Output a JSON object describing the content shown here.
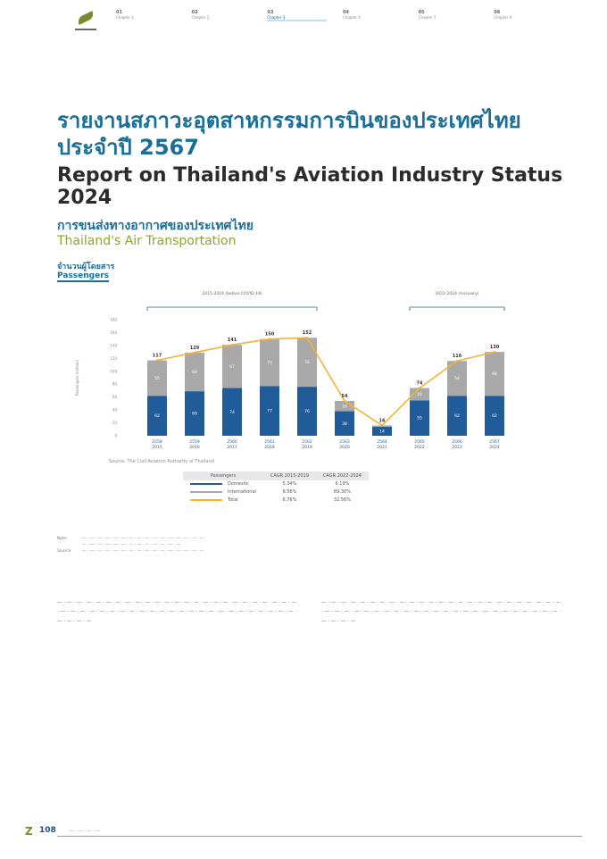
{
  "nav": {
    "items": [
      {
        "num": "01",
        "label": "Chapter 1"
      },
      {
        "num": "02",
        "label": "Chapter 2"
      },
      {
        "num": "03",
        "label": "Chapter 3"
      },
      {
        "num": "04",
        "label": "Chapter 4"
      },
      {
        "num": "05",
        "label": "Chapter 5"
      },
      {
        "num": "06",
        "label": "Chapter 6"
      }
    ],
    "active_index": 2
  },
  "title": {
    "th_line1": "รายงานสภาวะอุตสาหกรรมการบินของประเทศไทย",
    "th_line2": "ประจำปี 2567",
    "en": "Report on Thailand's Aviation Industry Status 2024"
  },
  "section": {
    "th": "การขนส่งทางอากาศของประเทศไทย",
    "en": "Thailand's Air Transportation",
    "sub_th": "จำนวนผู้โดยสาร",
    "sub_en": "Passengers"
  },
  "chart_data": {
    "type": "bar",
    "stacked": true,
    "title": "Passengers",
    "ylabel": "Passengers (million)",
    "ylim": [
      0,
      180
    ],
    "yticks": [
      0,
      20,
      40,
      60,
      80,
      100,
      120,
      140,
      160,
      180
    ],
    "categories": [
      "2558\n2015",
      "2559\n2016",
      "2560\n2017",
      "2561\n2018",
      "2562\n2019",
      "2563\n2020",
      "2564\n2021",
      "2565\n2022",
      "2566\n2023",
      "2567\n2024"
    ],
    "series": [
      {
        "name": "Domestic",
        "color": "#1f5c99",
        "values": [
          62,
          69,
          74,
          77,
          76,
          38,
          14,
          55,
          62,
          62
        ]
      },
      {
        "name": "International",
        "color": "#a9a9a9",
        "values": [
          55,
          60,
          67,
          73,
          76,
          16,
          2,
          19,
          54,
          68
        ]
      },
      {
        "name": "Total",
        "type": "line",
        "color": "#f5b335",
        "values": [
          117,
          129,
          141,
          150,
          152,
          54,
          16,
          74,
          116,
          130
        ]
      }
    ],
    "annotations": [
      {
        "text": "2015-2019 (before COVID-19)",
        "span": [
          "2558\n2015",
          "2562\n2019"
        ]
      },
      {
        "text": "2022-2024 (recovery)",
        "span": [
          "2565\n2022",
          "2567\n2024"
        ]
      }
    ],
    "source": "Source: The Civil Aviation Authority of Thailand"
  },
  "legend_table": {
    "header": [
      "Passengers",
      "CAGR 2015-2019",
      "CAGR 2022-2024"
    ],
    "rows": [
      {
        "label": "Domestic",
        "color": "#1f5c99",
        "v1": "5.34%",
        "v2": "6.19%"
      },
      {
        "label": "International",
        "color": "#a9a9a9",
        "v1": "8.56%",
        "v2": "89.30%"
      },
      {
        "label": "Total",
        "color": "#f5b335",
        "v1": "6.76%",
        "v2": "32.56%"
      }
    ]
  },
  "notes": [
    {
      "key": "Note",
      "text": "— · — · — · — · — · — · — · — · — · — · — · — · — · — · — · —"
    },
    {
      "key": "",
      "text": "— · — · — · — · — · — · — · — · — · — · — · — · —"
    },
    {
      "key": "Source",
      "text": "— · — · — · — · — · — · — · — · — · — · — · — · — · — · — · —"
    }
  ],
  "body": {
    "left": "— · — · — · — · — · — · — · — · — · — · — · — · — · — · — · — · — · — · — · — · — · — · — · — · — · — · — · — · — · — · — · — · — · — · — · — · — · — · — · — · — · — · — · — · — · — · — · — · — · — · — · — · —",
    "right": "— · — · — · — · — · — · — · — · — · — · — · — · — · — · — · — · — · — · — · — · — · — · — · — · — · — · — · — · — · — · — · — · — · — · — · — · — · — · — · — · — · — · — · — · — · — · — · — · — · — · — · — · —"
  },
  "footer": {
    "page": "108",
    "text": "— · — · — · —"
  }
}
